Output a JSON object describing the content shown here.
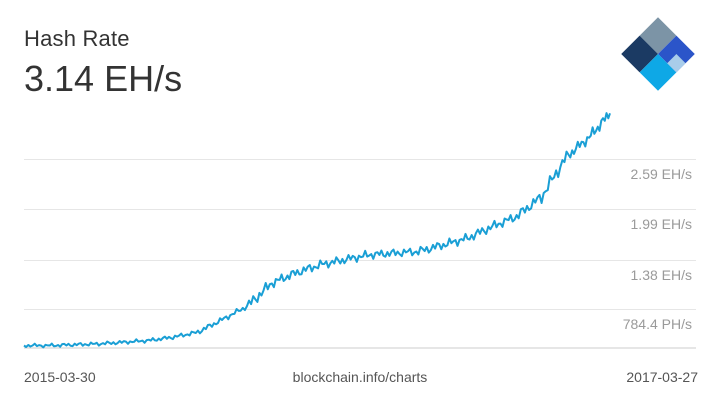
{
  "header": {
    "title": "Hash Rate",
    "current_value": "3.14 EH/s"
  },
  "footer": {
    "source": "blockchain.info/charts"
  },
  "logo": {
    "icon": "blockchain-diamond-logo",
    "colors": [
      "#7c94a6",
      "#1b3a63",
      "#2b55c9",
      "#0ea8e6",
      "#a9cdea"
    ]
  },
  "colors": {
    "line": "#1a9fd5",
    "grid": "#e6e6e6",
    "axis": "#cccccc",
    "tick_text": "#9a9a9a"
  },
  "chart_data": {
    "type": "line",
    "title": "Hash Rate",
    "xlabel": "",
    "ylabel": "",
    "x_start": "2015-03-30",
    "x_end": "2017-03-27",
    "y_unit": "EH/s",
    "ylim": [
      0.32,
      3.3
    ],
    "grid": true,
    "y_ticks": [
      {
        "value": 0.7844,
        "label": "784.4 PH/s"
      },
      {
        "value": 1.38,
        "label": "1.38 EH/s"
      },
      {
        "value": 1.99,
        "label": "1.99 EH/s"
      },
      {
        "value": 2.59,
        "label": "2.59 EH/s"
      }
    ],
    "x_tick_labels": [
      "2015-03-30",
      "2017-03-27"
    ],
    "series": [
      {
        "x": [
          "2015-03-30",
          "2015-05-01",
          "2015-06-01",
          "2015-07-01",
          "2015-08-01",
          "2015-09-01",
          "2015-10-01",
          "2015-11-01",
          "2015-12-01",
          "2016-01-01",
          "2016-02-01",
          "2016-03-01",
          "2016-04-01",
          "2016-05-01",
          "2016-06-01",
          "2016-07-01",
          "2016-08-01",
          "2016-09-01",
          "2016-10-01",
          "2016-11-01",
          "2016-12-01",
          "2017-01-01",
          "2017-02-01",
          "2017-03-01",
          "2017-03-27"
        ],
        "values": [
          0.35,
          0.35,
          0.36,
          0.37,
          0.39,
          0.41,
          0.45,
          0.51,
          0.66,
          0.82,
          1.1,
          1.22,
          1.32,
          1.38,
          1.44,
          1.46,
          1.48,
          1.56,
          1.64,
          1.78,
          1.9,
          2.14,
          2.62,
          2.85,
          3.14
        ]
      }
    ]
  }
}
